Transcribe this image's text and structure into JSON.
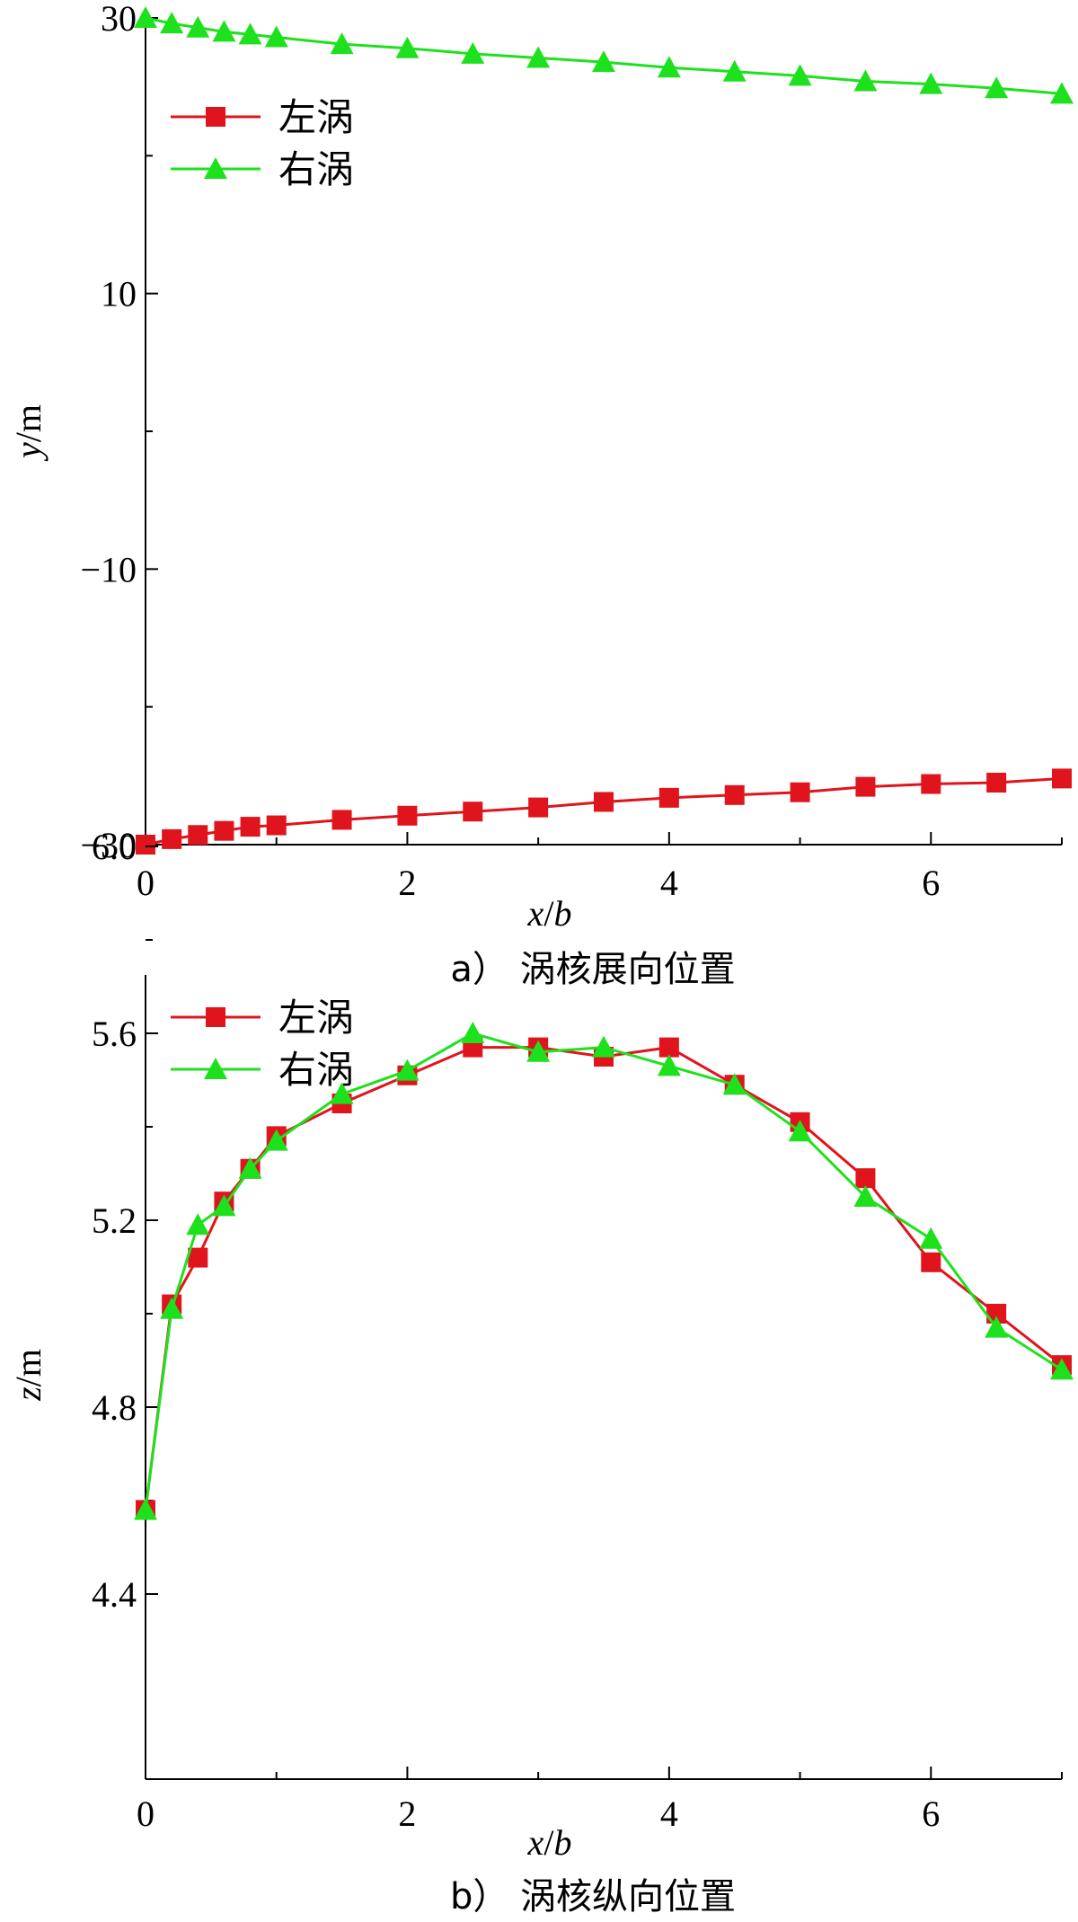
{
  "colors": {
    "left": "#e0141c",
    "right": "#1ee11e",
    "axis": "#000000"
  },
  "chart_data": [
    {
      "type": "line",
      "caption": "a） 涡核展向位置",
      "xlabel": "x/b",
      "ylabel": "y/m",
      "xlim": [
        0,
        7
      ],
      "ylim": [
        -30,
        30
      ],
      "xticks": [
        0,
        2,
        4,
        6
      ],
      "xtick_labels": [
        "0",
        "2",
        "4",
        "6"
      ],
      "yticks": [
        -30,
        -10,
        10,
        30
      ],
      "ytick_labels": [
        "−30",
        "−10",
        "10",
        "30"
      ],
      "legend_position": "top-left",
      "x": [
        0,
        0.2,
        0.4,
        0.6,
        0.8,
        1,
        1.5,
        2,
        2.5,
        3,
        3.5,
        4,
        4.5,
        5,
        5.5,
        6,
        6.5,
        7
      ],
      "series": [
        {
          "name": "左涡",
          "marker": "square",
          "color_key": "left",
          "values": [
            -30,
            -29.6,
            -29.3,
            -29.0,
            -28.7,
            -28.6,
            -28.2,
            -27.9,
            -27.6,
            -27.3,
            -26.9,
            -26.6,
            -26.4,
            -26.2,
            -25.8,
            -25.6,
            -25.5,
            -25.2
          ]
        },
        {
          "name": "右涡",
          "marker": "triangle",
          "color_key": "right",
          "values": [
            30,
            29.6,
            29.3,
            29.0,
            28.8,
            28.6,
            28.1,
            27.8,
            27.4,
            27.1,
            26.8,
            26.4,
            26.1,
            25.8,
            25.4,
            25.2,
            24.9,
            24.5
          ]
        }
      ]
    },
    {
      "type": "line",
      "caption": "b） 涡核纵向位置",
      "xlabel": "x/b",
      "ylabel": "z/m",
      "xlim": [
        0,
        7
      ],
      "ylim": [
        4.4,
        6.1
      ],
      "xticks": [
        0,
        2,
        4,
        6
      ],
      "xtick_labels": [
        "0",
        "2",
        "4",
        "6"
      ],
      "yticks": [
        4.4,
        4.8,
        5.2,
        5.6,
        6.0
      ],
      "ytick_labels": [
        "4.4",
        "4.8",
        "5.2",
        "5.6",
        "6.0"
      ],
      "legend_position": "top-left",
      "x": [
        0,
        0.2,
        0.4,
        0.6,
        0.8,
        1,
        1.5,
        2,
        2.5,
        3,
        3.5,
        4,
        4.5,
        5,
        5.5,
        6,
        6.5,
        7
      ],
      "series": [
        {
          "name": "左涡",
          "marker": "square",
          "color_key": "left",
          "values": [
            4.58,
            5.02,
            5.12,
            5.24,
            5.31,
            5.38,
            5.45,
            5.51,
            5.57,
            5.57,
            5.55,
            5.57,
            5.49,
            5.41,
            5.29,
            5.11,
            5.0,
            4.89
          ]
        },
        {
          "name": "右涡",
          "marker": "triangle",
          "color_key": "right",
          "values": [
            4.58,
            5.01,
            5.19,
            5.23,
            5.31,
            5.37,
            5.47,
            5.52,
            5.6,
            5.56,
            5.57,
            5.53,
            5.49,
            5.39,
            5.25,
            5.16,
            4.97,
            4.88
          ]
        }
      ]
    }
  ]
}
